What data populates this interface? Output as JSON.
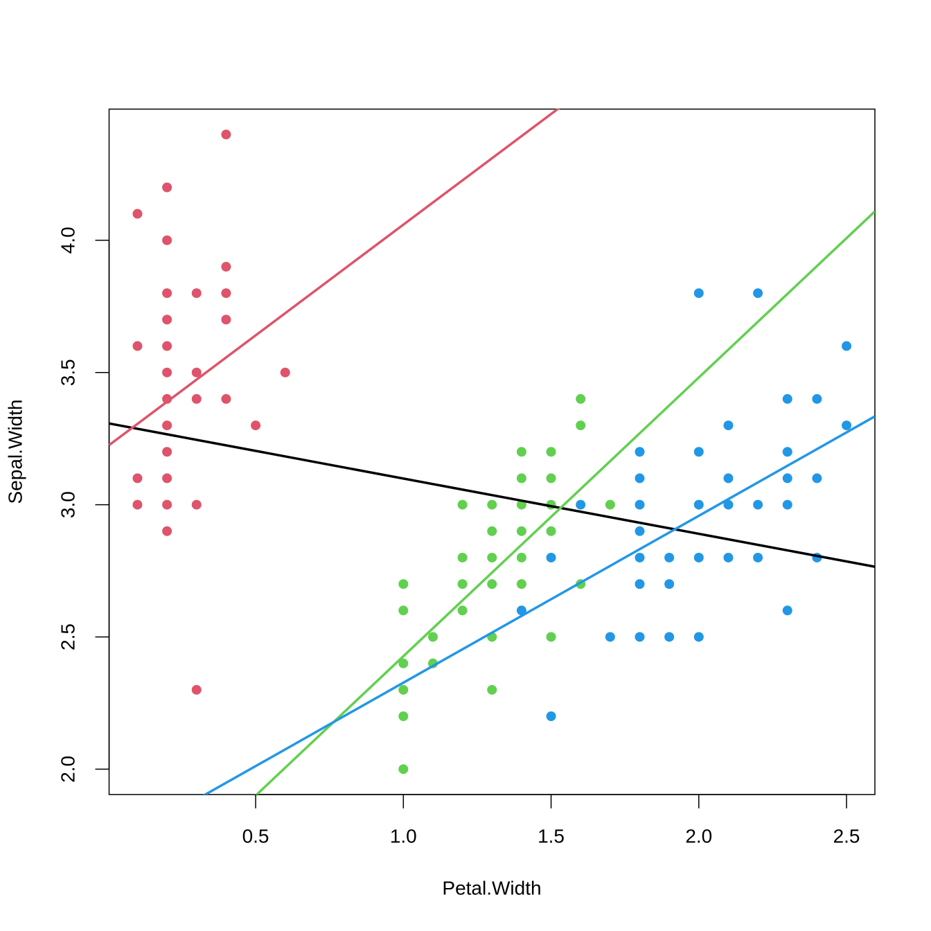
{
  "chart_data": {
    "type": "scatter",
    "x_label": "Petal.Width",
    "y_label": "Sepal.Width",
    "xlim": [
      0.004,
      2.596
    ],
    "ylim": [
      1.904,
      4.496
    ],
    "xticks": [
      0.5,
      1.0,
      1.5,
      2.0,
      2.5
    ],
    "yticks": [
      2.0,
      2.5,
      3.0,
      3.5,
      4.0
    ],
    "series": [
      {
        "color": "#DF536B",
        "x": [
          0.1,
          0.1,
          0.1,
          0.1,
          0.2,
          0.2,
          0.2,
          0.2,
          0.2,
          0.2,
          0.2,
          0.2,
          0.2,
          0.2,
          0.2,
          0.2,
          0.3,
          0.3,
          0.3,
          0.3,
          0.3,
          0.4,
          0.4,
          0.4,
          0.4,
          0.4,
          0.5,
          0.6
        ],
        "values": [
          4.1,
          3.6,
          3.1,
          3.0,
          4.2,
          4.0,
          3.8,
          3.7,
          3.6,
          3.5,
          3.4,
          3.3,
          3.2,
          3.1,
          3.0,
          2.9,
          3.8,
          3.5,
          3.4,
          3.0,
          2.3,
          4.4,
          3.9,
          3.8,
          3.7,
          3.4,
          3.3,
          3.5
        ]
      },
      {
        "color": "#61D04F",
        "x": [
          1.0,
          1.0,
          1.0,
          1.0,
          1.0,
          1.0,
          1.1,
          1.1,
          1.2,
          1.2,
          1.2,
          1.2,
          1.3,
          1.3,
          1.3,
          1.3,
          1.3,
          1.3,
          1.4,
          1.4,
          1.4,
          1.4,
          1.4,
          1.4,
          1.5,
          1.5,
          1.5,
          1.5,
          1.5,
          1.6,
          1.6,
          1.6,
          1.7
        ],
        "values": [
          2.7,
          2.6,
          2.4,
          2.3,
          2.2,
          2.0,
          2.5,
          2.4,
          3.0,
          2.8,
          2.7,
          2.6,
          3.0,
          2.9,
          2.8,
          2.7,
          2.5,
          2.3,
          3.2,
          3.1,
          3.0,
          2.9,
          2.8,
          2.7,
          3.2,
          3.1,
          3.0,
          2.9,
          2.5,
          3.4,
          3.3,
          2.7,
          3.0
        ]
      },
      {
        "color": "#2297E6",
        "x": [
          1.4,
          1.5,
          1.5,
          1.6,
          1.7,
          1.8,
          1.8,
          1.8,
          1.8,
          1.8,
          1.8,
          1.8,
          1.9,
          1.9,
          1.9,
          2.0,
          2.0,
          2.0,
          2.0,
          2.0,
          2.1,
          2.1,
          2.1,
          2.1,
          2.2,
          2.2,
          2.2,
          2.3,
          2.3,
          2.3,
          2.3,
          2.3,
          2.4,
          2.4,
          2.4,
          2.5,
          2.5
        ],
        "values": [
          2.6,
          2.8,
          2.2,
          3.0,
          2.5,
          3.2,
          3.1,
          3.0,
          2.9,
          2.8,
          2.7,
          2.5,
          2.8,
          2.7,
          2.5,
          3.8,
          3.2,
          3.0,
          2.8,
          2.5,
          3.3,
          3.1,
          3.0,
          2.8,
          3.8,
          3.0,
          2.8,
          3.4,
          3.2,
          3.1,
          3.0,
          2.6,
          3.4,
          3.1,
          2.8,
          3.6,
          3.3
        ]
      }
    ],
    "lines": [
      {
        "color": "#000000",
        "intercept": 3.308,
        "slope": -0.209
      },
      {
        "color": "#DF536B",
        "intercept": 3.222,
        "slope": 0.837
      },
      {
        "color": "#61D04F",
        "intercept": 1.373,
        "slope": 1.054
      },
      {
        "color": "#2297E6",
        "intercept": 1.696,
        "slope": 0.631
      }
    ]
  }
}
